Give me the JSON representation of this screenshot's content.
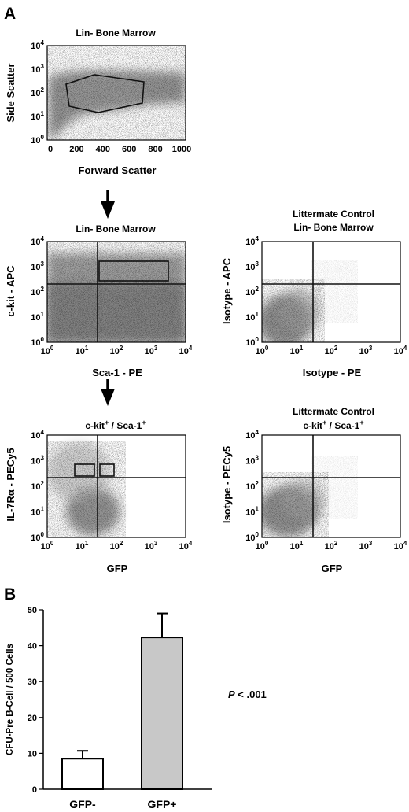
{
  "panel_a": {
    "letter": "A",
    "plots": [
      {
        "id": "fsc-ssc",
        "title": [
          "Lin- Bone Marrow"
        ],
        "xlabel": "Forward Scatter",
        "ylabel": "Side Scatter",
        "x_scale": "linear",
        "x_ticks": [
          "0",
          "200",
          "400",
          "600",
          "800",
          "1000"
        ],
        "y_ticks": [
          {
            "base": "10",
            "exp": "0"
          },
          {
            "base": "10",
            "exp": "1"
          },
          {
            "base": "10",
            "exp": "2"
          },
          {
            "base": "10",
            "exp": "3"
          },
          {
            "base": "10",
            "exp": "4"
          }
        ]
      },
      {
        "id": "ckit-sca1",
        "title": [
          "Lin- Bone Marrow"
        ],
        "xlabel": "Sca-1 - PE",
        "ylabel": "c-kit - APC",
        "x_scale": "log",
        "x_ticks": [
          {
            "base": "10",
            "exp": "0"
          },
          {
            "base": "10",
            "exp": "1"
          },
          {
            "base": "10",
            "exp": "2"
          },
          {
            "base": "10",
            "exp": "3"
          },
          {
            "base": "10",
            "exp": "4"
          }
        ],
        "y_ticks": [
          {
            "base": "10",
            "exp": "0"
          },
          {
            "base": "10",
            "exp": "1"
          },
          {
            "base": "10",
            "exp": "2"
          },
          {
            "base": "10",
            "exp": "3"
          },
          {
            "base": "10",
            "exp": "4"
          }
        ]
      },
      {
        "id": "isotype-apc-pe",
        "title": [
          "Littermate Control",
          "Lin- Bone Marrow"
        ],
        "xlabel": "Isotype - PE",
        "ylabel": "Isotype - APC",
        "x_scale": "log",
        "x_ticks": [
          {
            "base": "10",
            "exp": "0"
          },
          {
            "base": "10",
            "exp": "1"
          },
          {
            "base": "10",
            "exp": "2"
          },
          {
            "base": "10",
            "exp": "3"
          },
          {
            "base": "10",
            "exp": "4"
          }
        ],
        "y_ticks": [
          {
            "base": "10",
            "exp": "0"
          },
          {
            "base": "10",
            "exp": "1"
          },
          {
            "base": "10",
            "exp": "2"
          },
          {
            "base": "10",
            "exp": "3"
          },
          {
            "base": "10",
            "exp": "4"
          }
        ]
      },
      {
        "id": "il7r-gfp",
        "title_parts": [
          "c-kit",
          "+",
          " / Sca-1",
          "+"
        ],
        "xlabel": "GFP",
        "ylabel": "IL-7Rα - PECy5",
        "x_scale": "log",
        "x_ticks": [
          {
            "base": "10",
            "exp": "0"
          },
          {
            "base": "10",
            "exp": "1"
          },
          {
            "base": "10",
            "exp": "2"
          },
          {
            "base": "10",
            "exp": "3"
          },
          {
            "base": "10",
            "exp": "4"
          }
        ],
        "y_ticks": [
          {
            "base": "10",
            "exp": "0"
          },
          {
            "base": "10",
            "exp": "1"
          },
          {
            "base": "10",
            "exp": "2"
          },
          {
            "base": "10",
            "exp": "3"
          },
          {
            "base": "10",
            "exp": "4"
          }
        ]
      },
      {
        "id": "isotype-pecy5-gfp",
        "title": [
          "Littermate Control"
        ],
        "title_parts": [
          "c-kit",
          "+",
          " / Sca-1",
          "+"
        ],
        "xlabel": "GFP",
        "ylabel": "Isotype - PECy5",
        "x_scale": "log",
        "x_ticks": [
          {
            "base": "10",
            "exp": "0"
          },
          {
            "base": "10",
            "exp": "1"
          },
          {
            "base": "10",
            "exp": "2"
          },
          {
            "base": "10",
            "exp": "3"
          },
          {
            "base": "10",
            "exp": "4"
          }
        ],
        "y_ticks": [
          {
            "base": "10",
            "exp": "0"
          },
          {
            "base": "10",
            "exp": "1"
          },
          {
            "base": "10",
            "exp": "2"
          },
          {
            "base": "10",
            "exp": "3"
          },
          {
            "base": "10",
            "exp": "4"
          }
        ]
      }
    ]
  },
  "panel_b": {
    "letter": "B",
    "annotation": {
      "italic": "P",
      "rest": " < .001"
    }
  },
  "chart_data": {
    "type": "bar",
    "categories": [
      "GFP-",
      "GFP+"
    ],
    "values": [
      8.5,
      42.3
    ],
    "errors": [
      2.2,
      6.7
    ],
    "ylabel": "CFU-Pre B-Cell / 500 Cells",
    "xlabel": "",
    "ylim": [
      0,
      50
    ],
    "y_ticks": [
      "0",
      "10",
      "20",
      "30",
      "40",
      "50"
    ],
    "bar_colors": [
      "#ffffff",
      "#c8c8c8"
    ],
    "grid": false
  }
}
